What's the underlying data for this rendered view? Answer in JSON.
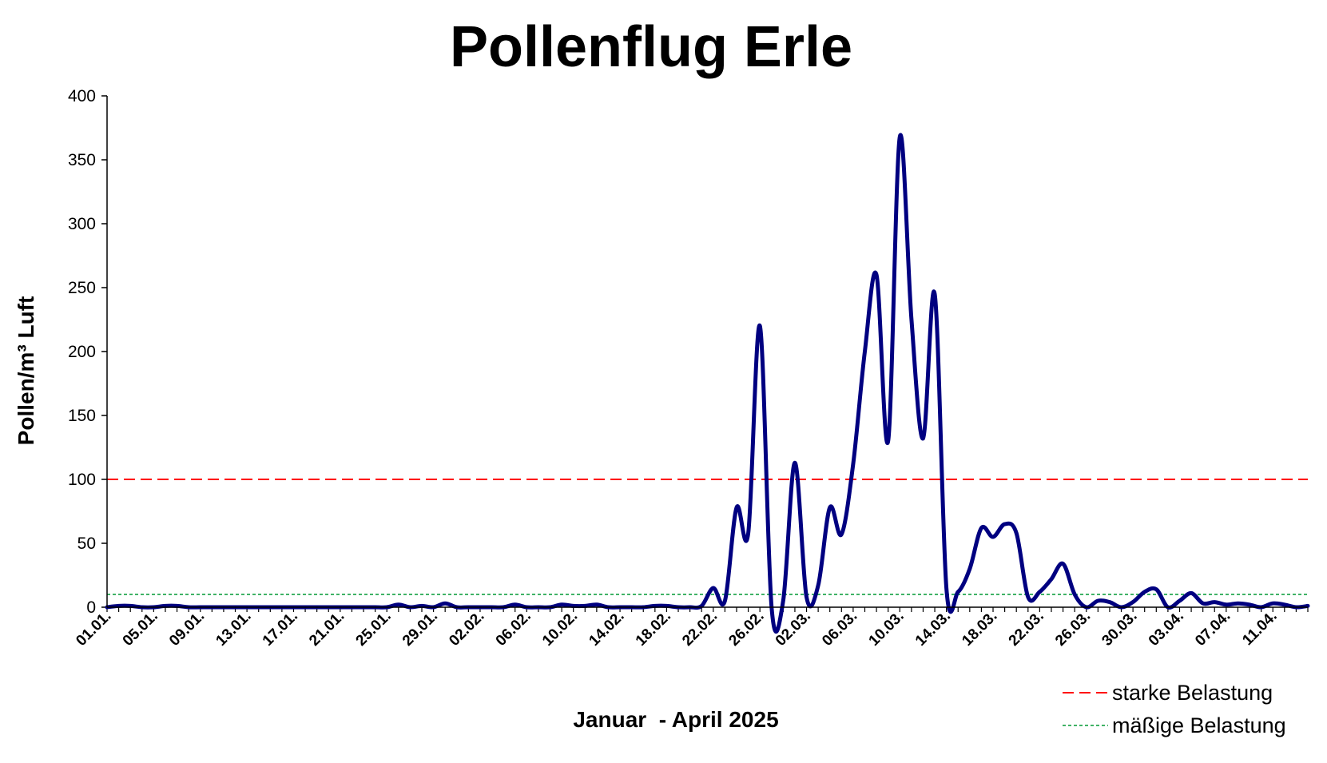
{
  "chart_data": {
    "type": "line",
    "title": "Pollenflug Erle",
    "xlabel": "Januar  - April 2025",
    "ylabel": "Pollen/m³ Luft",
    "ylim": [
      0,
      400
    ],
    "yticks": [
      0,
      50,
      100,
      150,
      200,
      250,
      300,
      350,
      400
    ],
    "x_tick_labels": [
      "01.01.",
      "05.01.",
      "09.01.",
      "13.01.",
      "17.01.",
      "21.01.",
      "25.01.",
      "29.01.",
      "02.02.",
      "06.02.",
      "10.02.",
      "14.02.",
      "18.02.",
      "22.02.",
      "26.02.",
      "02.03.",
      "06.03.",
      "10.03.",
      "14.03.",
      "18.03.",
      "22.03.",
      "26.03.",
      "30.03.",
      "03.04.",
      "07.04.",
      "11.04."
    ],
    "grid": false,
    "legend_position": "bottom-right",
    "series": [
      {
        "name": "",
        "color": "#000080",
        "values": [
          0,
          1,
          1,
          0,
          0,
          1,
          1,
          0,
          0,
          0,
          0,
          0,
          0,
          0,
          0,
          0,
          0,
          0,
          0,
          0,
          0,
          0,
          0,
          0,
          0,
          2,
          0,
          1,
          0,
          3,
          0,
          0,
          0,
          0,
          0,
          2,
          0,
          0,
          0,
          2,
          1,
          1,
          2,
          0,
          0,
          0,
          0,
          1,
          1,
          0,
          0,
          1,
          15,
          5,
          78,
          58,
          220,
          0,
          5,
          113,
          8,
          17,
          78,
          57,
          112,
          200,
          260,
          130,
          368,
          225,
          132,
          245,
          15,
          12,
          30,
          62,
          55,
          65,
          58,
          8,
          12,
          22,
          34,
          10,
          0,
          5,
          4,
          0,
          4,
          12,
          14,
          0,
          5,
          11,
          3,
          4,
          2,
          3,
          2,
          0,
          3,
          2,
          0,
          1
        ]
      }
    ],
    "thresholds": [
      {
        "name": "starke Belastung",
        "value": 100,
        "color": "#ff0000",
        "style": "dashed"
      },
      {
        "name": "mäßige Belastung",
        "value": 10,
        "color": "#009933",
        "style": "dotted"
      }
    ]
  }
}
